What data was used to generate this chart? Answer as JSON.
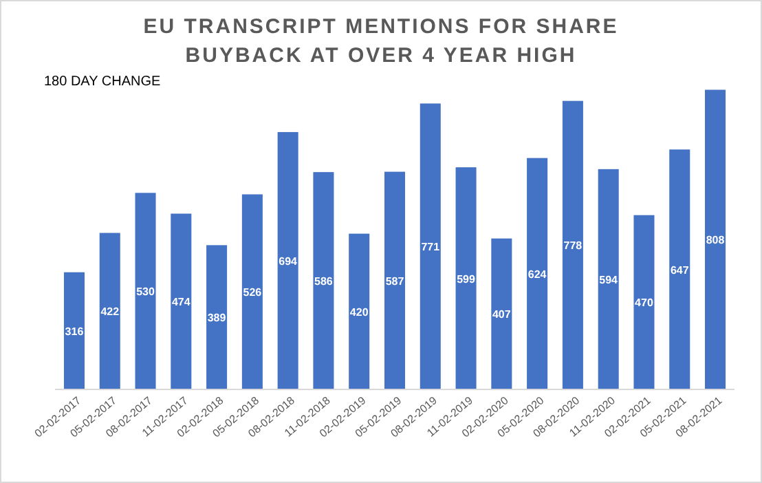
{
  "chart_data": {
    "type": "bar",
    "title": "EU TRANSCRIPT MENTIONS FOR SHARE BUYBACK AT OVER 4 YEAR HIGH",
    "annotations": [
      "180 DAY CHANGE"
    ],
    "categories": [
      "02-02-2017",
      "05-02-2017",
      "08-02-2017",
      "11-02-2017",
      "02-02-2018",
      "05-02-2018",
      "08-02-2018",
      "11-02-2018",
      "02-02-2019",
      "05-02-2019",
      "08-02-2019",
      "11-02-2019",
      "02-02-2020",
      "05-02-2020",
      "08-02-2020",
      "11-02-2020",
      "02-02-2021",
      "05-02-2021",
      "08-02-2021"
    ],
    "values": [
      316,
      422,
      530,
      474,
      389,
      526,
      694,
      586,
      420,
      587,
      771,
      599,
      407,
      624,
      778,
      594,
      470,
      647,
      808
    ],
    "color": "#4472c4",
    "data_labels": true
  }
}
